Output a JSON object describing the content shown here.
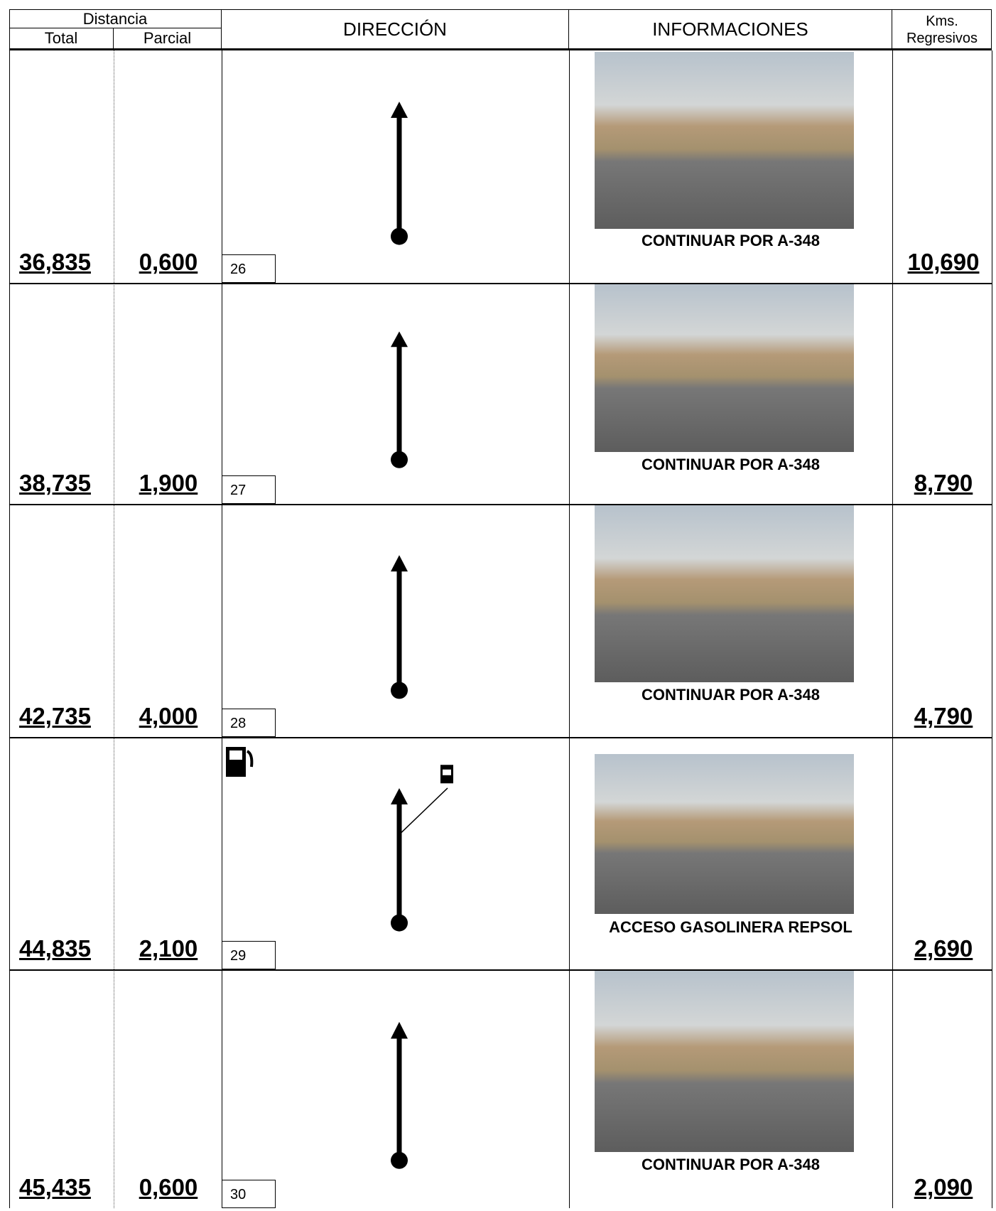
{
  "header": {
    "distancia": "Distancia",
    "total": "Total",
    "parcial": "Parcial",
    "direccion": "DIRECCIÓN",
    "informaciones": "INFORMACIONES",
    "kms_line1": "Kms.",
    "kms_line2": "Regresivos"
  },
  "rows": [
    {
      "total": "36,835",
      "parcial": "0,600",
      "number": 26,
      "info": "CONTINUAR POR A-348",
      "kms": "10,690"
    },
    {
      "total": "38,735",
      "parcial": "1,900",
      "number": 27,
      "info": "CONTINUAR POR A-348",
      "kms": "8,790"
    },
    {
      "total": "42,735",
      "parcial": "4,000",
      "number": 28,
      "info": "CONTINUAR POR A-348",
      "kms": "4,790"
    },
    {
      "total": "44,835",
      "parcial": "2,100",
      "number": 29,
      "info": "ACCESO GASOLINERA REPSOL",
      "kms": "2,690"
    },
    {
      "total": "45,435",
      "parcial": "0,600",
      "number": 30,
      "info": "CONTINUAR POR A-348",
      "kms": "2,090"
    }
  ]
}
